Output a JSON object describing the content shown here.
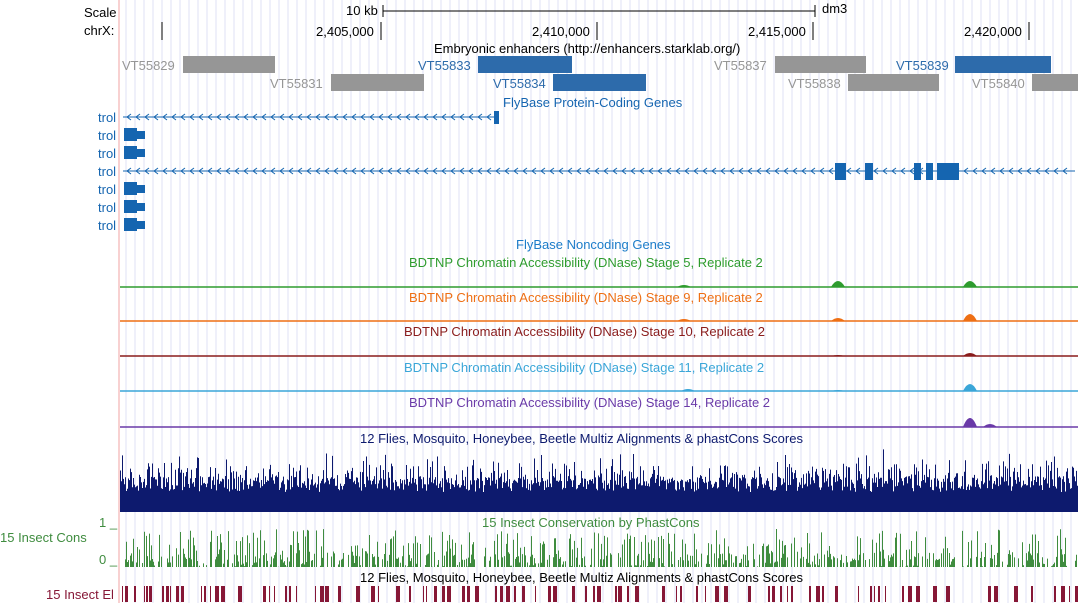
{
  "scale": {
    "label": "Scale",
    "chrom_label": "chrX:",
    "bar_label": "10 kb",
    "assembly": "dm3",
    "ticks": [
      "2,405,000",
      "2,410,000",
      "2,415,000",
      "2,420,000"
    ]
  },
  "tracks": {
    "enhancers": {
      "title": "Embryonic enhancers (http://enhancers.starklab.org/)",
      "items": [
        {
          "name": "VT55829",
          "color": "#969696"
        },
        {
          "name": "VT55831",
          "color": "#969696"
        },
        {
          "name": "VT55833",
          "color": "#2d6bab"
        },
        {
          "name": "VT55834",
          "color": "#2d6bab"
        },
        {
          "name": "VT55837",
          "color": "#969696"
        },
        {
          "name": "VT55838",
          "color": "#969696"
        },
        {
          "name": "VT55839",
          "color": "#2d6bab"
        },
        {
          "name": "VT55840",
          "color": "#969696"
        }
      ]
    },
    "genes": {
      "title": "FlyBase Protein-Coding Genes",
      "color": "#1565b0",
      "rows": [
        "trol",
        "trol",
        "trol",
        "trol",
        "trol",
        "trol",
        "trol"
      ]
    },
    "noncoding": {
      "title": "FlyBase Noncoding Genes",
      "color": "#1c7cc9"
    },
    "dnase": [
      {
        "title": "BDTNP Chromatin Accessibility (DNase) Stage 5, Replicate 2",
        "color": "#2e9c2e"
      },
      {
        "title": "BDTNP Chromatin Accessibility (DNase) Stage 9, Replicate 2",
        "color": "#ee6f14"
      },
      {
        "title": "BDTNP Chromatin Accessibility (DNase) Stage 10, Replicate 2",
        "color": "#8a1c1c"
      },
      {
        "title": "BDTNP Chromatin Accessibility (DNase) Stage 11, Replicate 2",
        "color": "#3aa6d8"
      },
      {
        "title": "BDTNP Chromatin Accessibility (DNase) Stage 14, Replicate 2",
        "color": "#6a3aa8"
      }
    ],
    "multiz": {
      "title": "12 Flies, Mosquito, Honeybee, Beetle Multiz Alignments & phastCons Scores",
      "color": "#0d1a6e"
    },
    "cons": {
      "title": "15 Insect Conservation by PhastCons",
      "side_label": "15 Insect Cons",
      "max_label": "1 _",
      "min_label": "0 _",
      "color": "#3f8c3f"
    },
    "elements": {
      "title": "12 Flies, Mosquito, Honeybee, Beetle Multiz Alignments & phastCons Scores",
      "side_label": "15 Insect El",
      "color": "#861736"
    }
  }
}
